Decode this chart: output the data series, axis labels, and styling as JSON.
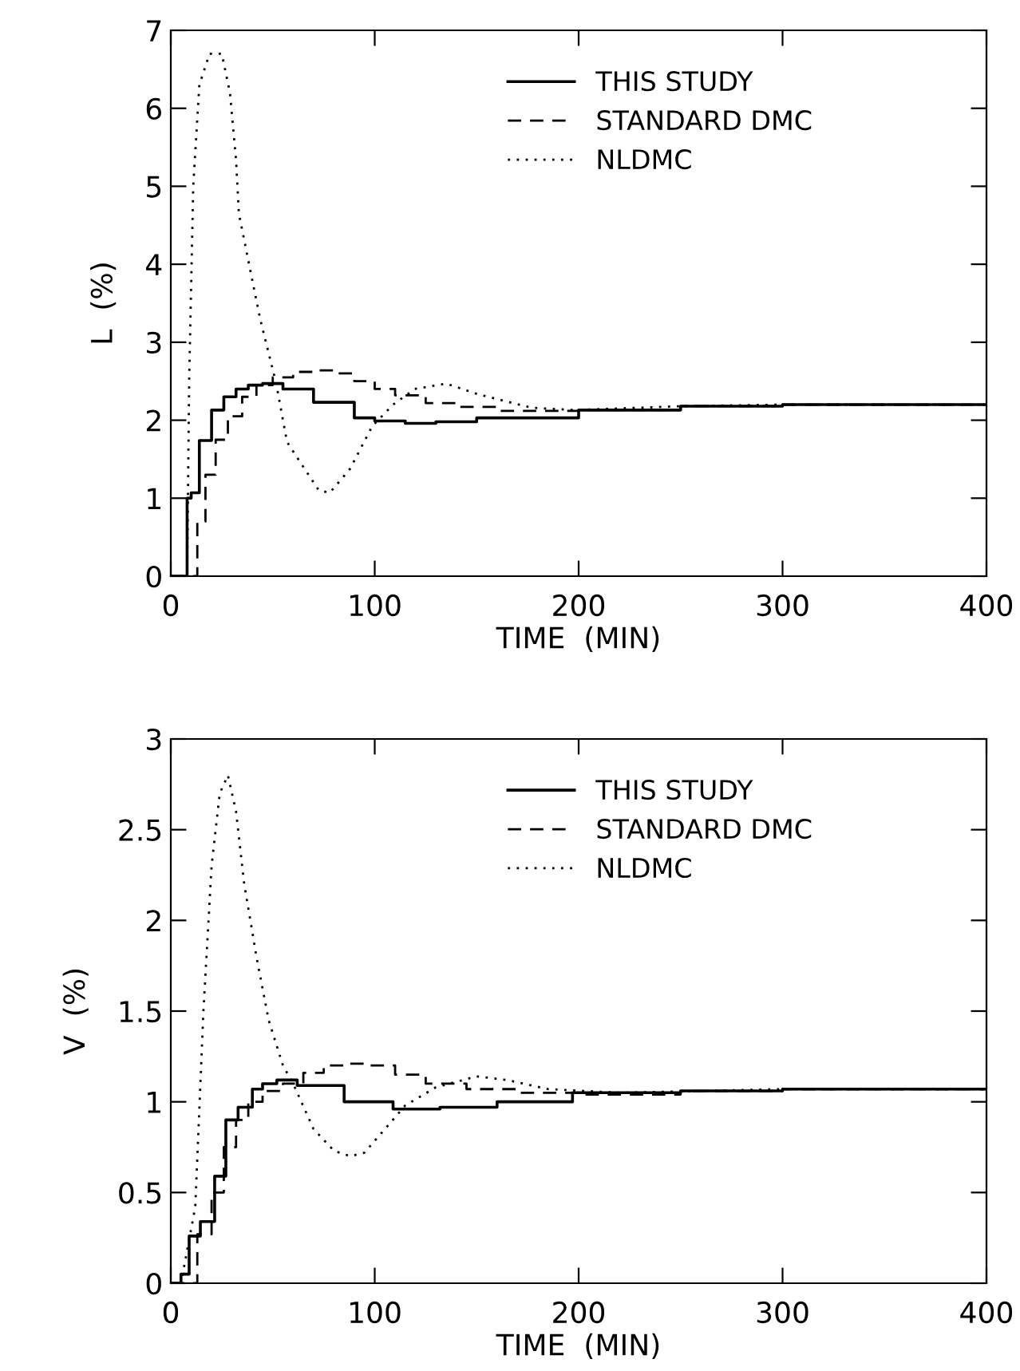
{
  "chart_data": [
    {
      "type": "line",
      "ylabel": "L  (%)",
      "xlabel": "TIME  (MIN)",
      "xlim": [
        0,
        400
      ],
      "xticks": [
        0,
        100,
        200,
        300,
        400
      ],
      "ylim": [
        0,
        7
      ],
      "yticks": [
        0,
        1,
        2,
        3,
        4,
        5,
        6,
        7
      ],
      "grid": false,
      "legend": "top",
      "series": [
        {
          "name": "THIS STUDY",
          "type": "step",
          "color": "#000000",
          "line_style": "solid",
          "x": [
            0,
            8,
            10,
            14,
            20,
            26,
            32,
            38,
            45,
            55,
            70,
            90,
            100,
            115,
            130,
            150,
            200,
            250,
            300,
            400
          ],
          "values": [
            0,
            1.0,
            1.07,
            1.74,
            2.13,
            2.3,
            2.4,
            2.45,
            2.47,
            2.4,
            2.23,
            2.03,
            1.99,
            1.96,
            1.98,
            2.03,
            2.13,
            2.18,
            2.2,
            2.2
          ]
        },
        {
          "name": "STANDARD DMC",
          "type": "step",
          "color": "#000000",
          "line_style": "dashed",
          "x": [
            0,
            13,
            17,
            22,
            28,
            35,
            42,
            50,
            60,
            70,
            80,
            90,
            100,
            110,
            125,
            140,
            160,
            200,
            250,
            300,
            400
          ],
          "values": [
            0,
            0.7,
            1.3,
            1.75,
            2.05,
            2.3,
            2.45,
            2.55,
            2.62,
            2.64,
            2.6,
            2.5,
            2.4,
            2.32,
            2.22,
            2.17,
            2.12,
            2.13,
            2.18,
            2.2,
            2.2
          ]
        },
        {
          "name": "NLDMC",
          "type": "line",
          "color": "#000000",
          "line_style": "dotted",
          "x": [
            0,
            8,
            9,
            11,
            14,
            19,
            25,
            29,
            32,
            33.4,
            38.6,
            43.9,
            47.8,
            51.7,
            57,
            62,
            72.6,
            78,
            88,
            98.7,
            109,
            119.6,
            135,
            151,
            177,
            198,
            250,
            300,
            400
          ],
          "values": [
            0,
            0,
            2.5,
            5.0,
            6.3,
            6.7,
            6.7,
            6.2,
            5.34,
            4.65,
            3.97,
            3.29,
            2.88,
            2.47,
            1.72,
            1.52,
            1.1,
            1.07,
            1.38,
            1.92,
            2.2,
            2.4,
            2.47,
            2.33,
            2.16,
            2.13,
            2.18,
            2.2,
            2.2
          ]
        }
      ]
    },
    {
      "type": "line",
      "ylabel": "V  (%)",
      "xlabel": "TIME  (MIN)",
      "xlim": [
        0,
        400
      ],
      "xticks": [
        0,
        100,
        200,
        300,
        400
      ],
      "ylim": [
        0,
        3
      ],
      "yticks": [
        0,
        0.5,
        1,
        1.5,
        2,
        2.5,
        3
      ],
      "grid": false,
      "legend": "top",
      "series": [
        {
          "name": "THIS STUDY",
          "type": "step",
          "color": "#000000",
          "line_style": "solid",
          "x": [
            0,
            5,
            9,
            14.5,
            21.5,
            27,
            33,
            40,
            45,
            52,
            59,
            62,
            85,
            109,
            132,
            160,
            197,
            250,
            300,
            400
          ],
          "values": [
            0,
            0.05,
            0.26,
            0.34,
            0.59,
            0.9,
            0.97,
            1.07,
            1.1,
            1.12,
            1.12,
            1.09,
            1.0,
            0.96,
            0.97,
            1.0,
            1.05,
            1.06,
            1.07,
            1.07
          ]
        },
        {
          "name": "STANDARD DMC",
          "type": "step",
          "color": "#000000",
          "line_style": "dashed",
          "x": [
            0,
            13,
            20,
            26,
            32,
            38,
            45,
            55,
            65,
            75,
            85,
            95,
            110,
            125,
            145,
            170,
            200,
            250,
            300,
            400
          ],
          "values": [
            0,
            0.27,
            0.5,
            0.75,
            0.9,
            1.0,
            1.06,
            1.1,
            1.16,
            1.2,
            1.21,
            1.2,
            1.15,
            1.1,
            1.07,
            1.05,
            1.04,
            1.06,
            1.07,
            1.07
          ]
        },
        {
          "name": "NLDMC",
          "type": "line",
          "color": "#000000",
          "line_style": "dotted",
          "x": [
            0,
            5,
            12,
            16,
            20,
            24,
            28,
            32,
            36,
            42,
            48,
            55,
            60,
            70,
            80,
            88,
            95,
            105,
            115,
            130,
            150,
            165,
            185,
            220,
            300,
            400
          ],
          "values": [
            0,
            0,
            0.42,
            1.5,
            2.3,
            2.7,
            2.8,
            2.6,
            2.2,
            1.8,
            1.45,
            1.2,
            1.1,
            0.85,
            0.73,
            0.7,
            0.72,
            0.85,
            0.98,
            1.08,
            1.14,
            1.12,
            1.07,
            1.05,
            1.07,
            1.07
          ]
        }
      ]
    }
  ]
}
